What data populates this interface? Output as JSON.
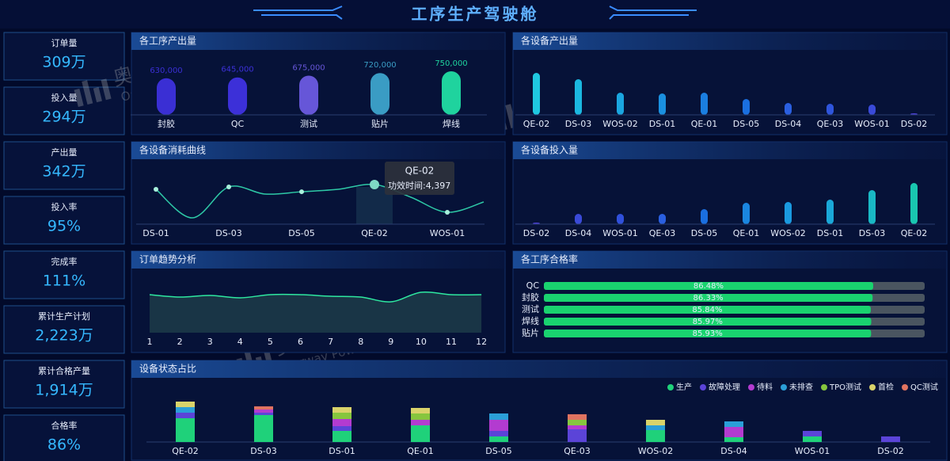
{
  "header": {
    "title": "工序生产驾驶舱"
  },
  "watermark": {
    "brand": "奥威软件",
    "sub": "Ourway Power"
  },
  "kpis": [
    {
      "label": "订单量",
      "value": "309万"
    },
    {
      "label": "投入量",
      "value": "294万"
    },
    {
      "label": "产出量",
      "value": "342万"
    },
    {
      "label": "投入率",
      "value": "95%"
    },
    {
      "label": "完成率",
      "value": "111%"
    },
    {
      "label": "累计生产计划",
      "value": "2,223万"
    },
    {
      "label": "累计合格产量",
      "value": "1,914万"
    },
    {
      "label": "合格率",
      "value": "86%"
    }
  ],
  "chart_data": [
    {
      "type": "bar",
      "title": "各工序产出量",
      "categories": [
        "封胶",
        "QC",
        "测试",
        "贴片",
        "焊线"
      ],
      "values": [
        630000,
        645000,
        675000,
        720000,
        750000
      ],
      "value_labels": [
        "630,000",
        "645,000",
        "675,000",
        "720,000",
        "750,000"
      ],
      "colors": [
        "#3a2fd4",
        "#3c30d8",
        "#6656d8",
        "#3a9cc4",
        "#1fd39e"
      ]
    },
    {
      "type": "bar",
      "title": "各设备产出量",
      "categories": [
        "QE-02",
        "DS-03",
        "WOS-02",
        "DS-01",
        "QE-01",
        "DS-05",
        "DS-04",
        "QE-03",
        "WOS-01",
        "DS-02"
      ],
      "values": [
        53,
        45,
        28,
        27,
        28,
        20,
        15,
        14,
        13,
        2
      ],
      "colors": [
        "#1fc8e0",
        "#1bb8e0",
        "#1aa6e0",
        "#1a90e0",
        "#1a7ee0",
        "#1a6fe0",
        "#2a5fe0",
        "#2f55dc",
        "#3a4ad8",
        "#4a3fd4"
      ]
    },
    {
      "type": "line",
      "title": "各设备消耗曲线",
      "categories": [
        "DS-01",
        null,
        "DS-03",
        null,
        "DS-05",
        null,
        "QE-02",
        null,
        "WOS-01",
        null
      ],
      "values": [
        3870,
        700,
        4130,
        3340,
        3600,
        3870,
        4397,
        2990,
        1320,
        2460
      ],
      "color": "#2ec9a6",
      "tooltip": {
        "title": "QE-02",
        "text": "功效时间:4,397"
      }
    },
    {
      "type": "bar",
      "title": "各设备投入量",
      "categories": [
        "DS-02",
        "DS-04",
        "WOS-01",
        "QE-03",
        "DS-05",
        "QE-01",
        "WOS-02",
        "DS-01",
        "DS-03",
        "QE-02"
      ],
      "values": [
        2,
        13,
        13,
        13,
        19,
        27,
        28,
        31,
        43,
        52
      ],
      "colors": [
        "#4a3fd4",
        "#3a4ad8",
        "#3050dc",
        "#2a5fe0",
        "#1a6fe0",
        "#1a86e0",
        "#1a9ae0",
        "#1aa8d8",
        "#19b8c4",
        "#19c7b0"
      ]
    },
    {
      "type": "area",
      "title": "订单趋势分析",
      "categories": [
        "1",
        "2",
        "3",
        "4",
        "5",
        "6",
        "7",
        "8",
        "9",
        "10",
        "11",
        "12"
      ],
      "values": [
        48,
        45,
        47,
        44,
        48,
        48,
        46,
        45,
        39,
        51,
        48,
        48
      ],
      "color": "#2ee8a0"
    },
    {
      "type": "hbar",
      "title": "各工序合格率",
      "categories": [
        "QC",
        "封胶",
        "测试",
        "焊线",
        "贴片"
      ],
      "values": [
        86.48,
        86.33,
        85.84,
        85.97,
        85.93
      ],
      "value_labels": [
        "86.48%",
        "86.33%",
        "85.84%",
        "85.97%",
        "85.93%"
      ],
      "xlim": [
        0,
        100
      ],
      "color": "#19d36f"
    },
    {
      "type": "stacked",
      "title": "设备状态占比",
      "categories": [
        "QE-02",
        "DS-03",
        "DS-01",
        "QE-01",
        "DS-05",
        "QE-03",
        "WOS-02",
        "DS-04",
        "WOS-01",
        "DS-02"
      ],
      "series": [
        {
          "name": "生产",
          "color": "#1fd17a",
          "values": [
            30,
            34,
            14,
            21,
            7,
            0,
            15,
            6,
            7,
            0
          ]
        },
        {
          "name": "故障处理",
          "color": "#5b44d8",
          "values": [
            7,
            3,
            6,
            0,
            7,
            16,
            0,
            0,
            7,
            7
          ]
        },
        {
          "name": "待料",
          "color": "#b33bd0",
          "values": [
            0,
            4,
            9,
            7,
            14,
            5,
            0,
            13,
            0,
            0
          ]
        },
        {
          "name": "未排查",
          "color": "#2b9fd8",
          "values": [
            7,
            0,
            0,
            0,
            8,
            0,
            6,
            7,
            0,
            0
          ]
        },
        {
          "name": "TPO测试",
          "color": "#86c63e",
          "values": [
            0,
            0,
            8,
            8,
            0,
            7,
            0,
            0,
            0,
            0
          ]
        },
        {
          "name": "首检",
          "color": "#d9d36a",
          "values": [
            7,
            0,
            7,
            7,
            0,
            0,
            7,
            0,
            0,
            0
          ]
        },
        {
          "name": "QC测试",
          "color": "#e07360",
          "values": [
            0,
            4,
            0,
            0,
            0,
            7,
            0,
            0,
            0,
            0
          ]
        }
      ]
    }
  ]
}
